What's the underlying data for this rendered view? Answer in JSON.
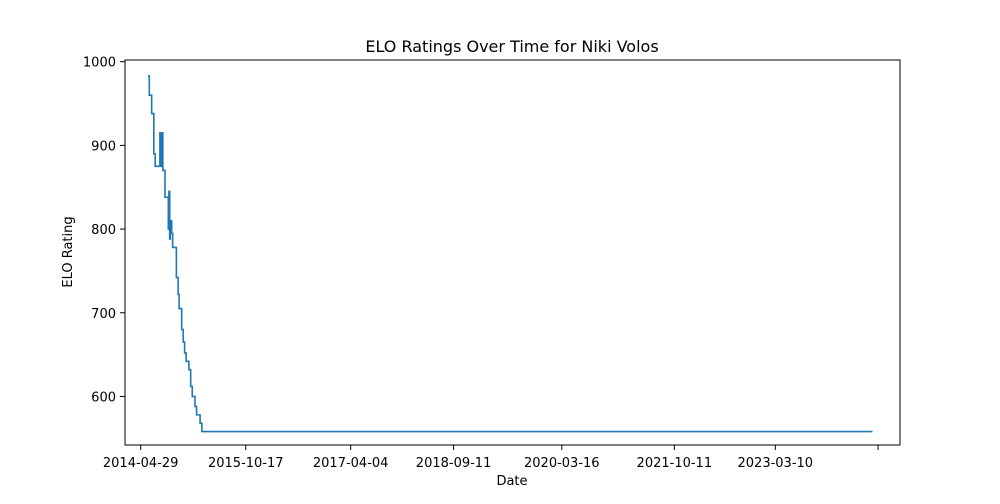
{
  "chart_data": {
    "type": "line",
    "title": "ELO Ratings Over Time for Niki Volos",
    "xlabel": "Date",
    "ylabel": "ELO Rating",
    "x_tick_labels": [
      "2014-04-29",
      "2015-10-17",
      "2017-04-04",
      "2018-09-11",
      "2020-03-16",
      "2021-10-11",
      "2023-03-10",
      ""
    ],
    "y_tick_labels": [
      "600",
      "700",
      "800",
      "900",
      "1000"
    ],
    "y_ticks": [
      600,
      700,
      800,
      900,
      1000
    ],
    "ylim": [
      542,
      1002
    ],
    "xlim": [
      "2014-02-08",
      "2024-12-05"
    ],
    "x_ticks": [
      "2014-04-29",
      "2015-10-17",
      "2017-04-04",
      "2018-09-11",
      "2020-03-16",
      "2021-10-11",
      "2023-03-10",
      "2024-08-15"
    ],
    "grid": false,
    "series": [
      {
        "color": "#1f77b4",
        "step": "post",
        "points": [
          [
            "2014-06-05",
            983
          ],
          [
            "2014-06-12",
            960
          ],
          [
            "2014-06-24",
            938
          ],
          [
            "2014-07-05",
            890
          ],
          [
            "2014-07-12",
            875
          ],
          [
            "2014-08-05",
            915
          ],
          [
            "2014-08-09",
            875
          ],
          [
            "2014-08-16",
            915
          ],
          [
            "2014-08-20",
            870
          ],
          [
            "2014-08-31",
            838
          ],
          [
            "2014-09-17",
            800
          ],
          [
            "2014-09-20",
            845
          ],
          [
            "2014-09-24",
            788
          ],
          [
            "2014-09-27",
            810
          ],
          [
            "2014-10-04",
            795
          ],
          [
            "2014-10-09",
            778
          ],
          [
            "2014-10-28",
            742
          ],
          [
            "2014-11-06",
            722
          ],
          [
            "2014-11-11",
            705
          ],
          [
            "2014-11-24",
            680
          ],
          [
            "2014-12-02",
            665
          ],
          [
            "2014-12-09",
            652
          ],
          [
            "2014-12-17",
            642
          ],
          [
            "2014-12-31",
            632
          ],
          [
            "2015-01-09",
            612
          ],
          [
            "2015-01-17",
            600
          ],
          [
            "2015-01-31",
            588
          ],
          [
            "2015-02-08",
            578
          ],
          [
            "2015-02-26",
            568
          ],
          [
            "2015-03-07",
            558
          ],
          [
            "2024-07-18",
            558
          ]
        ]
      }
    ]
  }
}
